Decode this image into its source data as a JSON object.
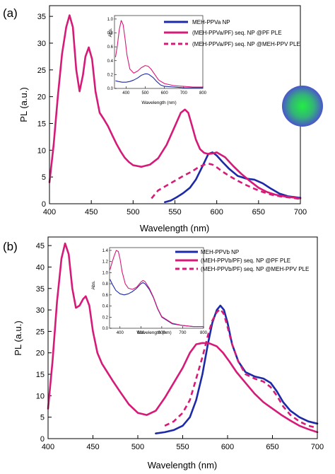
{
  "figure": {
    "colors": {
      "blue": "#1c2aa8",
      "magenta": "#d61a78",
      "axis": "#000000",
      "np_gradient_inner": "#22ee44",
      "np_gradient_outer": "#4a55cc"
    },
    "np_icon": "nanoparticle-glow-icon"
  },
  "chart_data": [
    {
      "type": "line",
      "panel_label": "(a)",
      "xlabel": "Wavelength (nm)",
      "ylabel": "PL (a.u.)",
      "xlim": [
        400,
        700
      ],
      "ylim": [
        0,
        37
      ],
      "xticks": [
        400,
        450,
        500,
        550,
        600,
        650,
        700
      ],
      "yticks": [
        0,
        5,
        10,
        15,
        20,
        25,
        30,
        35
      ],
      "xtick_labels": [
        "400",
        "450",
        "500",
        "550",
        "600",
        "650",
        "700"
      ],
      "ytick_labels": [
        "0",
        "5",
        "10",
        "15",
        "20",
        "25",
        "30",
        "35"
      ],
      "legend_position": "top-right",
      "series": [
        {
          "name": "MEH-PPVa NP",
          "color": "#1c2aa8",
          "style": "solid",
          "x": [
            538,
            545,
            552,
            560,
            568,
            575,
            583,
            590,
            595,
            600,
            607,
            615,
            625,
            635,
            645,
            655,
            665,
            675,
            685,
            695,
            700
          ],
          "y": [
            0.3,
            0.6,
            1.2,
            2.0,
            3.0,
            4.5,
            7.0,
            9.3,
            9.6,
            9.0,
            7.8,
            6.5,
            5.2,
            4.7,
            4.5,
            3.8,
            2.8,
            1.9,
            1.4,
            1.2,
            1.1
          ]
        },
        {
          "name": "(MEH-PPVa/PF) seq. NP @PF PLE",
          "color": "#d61a78",
          "style": "solid",
          "x": [
            400,
            405,
            410,
            415,
            420,
            424,
            428,
            432,
            436,
            440,
            443,
            447,
            451,
            455,
            460,
            465,
            470,
            475,
            480,
            485,
            490,
            495,
            500,
            510,
            520,
            530,
            540,
            550,
            557,
            562,
            566,
            570,
            575,
            580,
            585,
            590,
            595,
            600,
            610,
            620,
            630,
            640,
            650,
            660,
            670,
            680,
            690,
            700
          ],
          "y": [
            4.0,
            11.0,
            20.0,
            28.0,
            33.0,
            35.2,
            33.0,
            25.0,
            21.0,
            24.0,
            27.5,
            29.2,
            27.0,
            21.0,
            17.0,
            15.8,
            14.5,
            12.8,
            11.2,
            9.8,
            8.6,
            7.8,
            7.2,
            6.9,
            7.3,
            8.5,
            11.0,
            14.5,
            17.0,
            17.6,
            17.0,
            14.8,
            12.0,
            10.2,
            9.5,
            9.3,
            9.4,
            9.6,
            8.7,
            7.0,
            5.5,
            4.2,
            3.0,
            2.2,
            1.7,
            1.4,
            1.2,
            1.0
          ]
        },
        {
          "name": "(MEH-PPVa/PF) seq. NP @MEH-PPV PLE",
          "color": "#d61a78",
          "style": "dashed",
          "x": [
            522,
            530,
            540,
            550,
            560,
            570,
            578,
            585,
            590,
            595,
            600,
            607,
            615,
            625,
            635,
            645,
            655,
            665,
            675,
            685,
            695,
            700
          ],
          "y": [
            1.0,
            2.5,
            3.4,
            4.3,
            5.2,
            6.0,
            6.8,
            7.3,
            7.5,
            7.3,
            6.8,
            6.0,
            5.2,
            4.3,
            3.5,
            2.8,
            2.2,
            1.7,
            1.4,
            1.2,
            1.0,
            0.9
          ]
        }
      ],
      "inset": {
        "xlabel": "Wavelength (nm)",
        "ylabel": "Abs.",
        "xlim": [
          340,
          800
        ],
        "ylim": [
          0,
          1.05
        ],
        "xticks": [
          400,
          500,
          600,
          700,
          800
        ],
        "yticks": [
          0.0,
          0.2,
          0.4,
          0.6,
          0.8,
          1.0
        ],
        "xtick_labels": [
          "400",
          "500",
          "600",
          "700",
          "800"
        ],
        "ytick_labels": [
          "0.0",
          "0.2",
          "0.4",
          "0.6",
          "0.8",
          "1.0"
        ],
        "series": [
          {
            "color": "#1c2aa8",
            "x": [
              345,
              360,
              380,
              400,
              420,
              440,
              460,
              480,
              500,
              510,
              520,
              540,
              560,
              580,
              600,
              650,
              700,
              750,
              800
            ],
            "y": [
              0.11,
              0.1,
              0.09,
              0.09,
              0.1,
              0.12,
              0.15,
              0.19,
              0.21,
              0.21,
              0.2,
              0.16,
              0.1,
              0.05,
              0.03,
              0.02,
              0.01,
              0.01,
              0.01
            ]
          },
          {
            "color": "#d61a78",
            "x": [
              345,
              355,
              365,
              375,
              385,
              395,
              405,
              420,
              440,
              460,
              480,
              500,
              515,
              530,
              550,
              570,
              600,
              650,
              700,
              750,
              800
            ],
            "y": [
              0.45,
              0.62,
              0.85,
              0.98,
              0.92,
              0.72,
              0.48,
              0.28,
              0.22,
              0.25,
              0.3,
              0.33,
              0.32,
              0.28,
              0.2,
              0.12,
              0.07,
              0.04,
              0.03,
              0.02,
              0.02
            ]
          }
        ]
      }
    },
    {
      "type": "line",
      "panel_label": "(b)",
      "xlabel": "Wavelength (nm)",
      "ylabel": "PL (a.u.)",
      "xlim": [
        400,
        700
      ],
      "ylim": [
        0,
        47
      ],
      "xticks": [
        400,
        450,
        500,
        550,
        600,
        650,
        700
      ],
      "yticks": [
        0,
        5,
        10,
        15,
        20,
        25,
        30,
        35,
        40,
        45
      ],
      "xtick_labels": [
        "400",
        "450",
        "500",
        "550",
        "600",
        "650",
        "700"
      ],
      "ytick_labels": [
        "0",
        "5",
        "10",
        "15",
        "20",
        "25",
        "30",
        "35",
        "40",
        "45"
      ],
      "legend_position": "top-right",
      "series": [
        {
          "name": "MEH-PPVb NP",
          "color": "#1c2aa8",
          "style": "solid",
          "x": [
            520,
            530,
            540,
            550,
            558,
            565,
            572,
            578,
            583,
            588,
            592,
            596,
            600,
            605,
            612,
            620,
            630,
            640,
            648,
            655,
            662,
            670,
            680,
            690,
            700
          ],
          "y": [
            1.2,
            1.5,
            2.0,
            3.0,
            5.0,
            9.0,
            15.0,
            22.0,
            27.0,
            30.0,
            31.0,
            30.0,
            27.0,
            22.0,
            18.0,
            15.5,
            14.5,
            14.0,
            13.0,
            11.0,
            8.5,
            6.5,
            5.0,
            4.0,
            3.5
          ]
        },
        {
          "name": "(MEH-PPVb/PF) seq. NP @PF PLE",
          "color": "#d61a78",
          "style": "solid",
          "x": [
            400,
            405,
            410,
            415,
            419,
            423,
            427,
            431,
            435,
            439,
            442,
            446,
            450,
            455,
            460,
            466,
            472,
            480,
            490,
            500,
            510,
            520,
            530,
            540,
            550,
            558,
            565,
            572,
            580,
            588,
            595,
            602,
            610,
            620,
            630,
            640,
            650,
            660,
            670,
            680,
            690,
            700
          ],
          "y": [
            7.0,
            18.0,
            32.0,
            42.0,
            45.5,
            43.0,
            35.0,
            30.5,
            31.0,
            32.5,
            33.2,
            31.0,
            25.0,
            20.0,
            17.5,
            15.5,
            13.5,
            11.0,
            8.0,
            6.0,
            5.5,
            6.5,
            9.5,
            13.0,
            16.5,
            20.0,
            22.0,
            22.3,
            22.2,
            21.5,
            20.0,
            18.0,
            15.5,
            13.0,
            10.5,
            8.5,
            7.0,
            5.5,
            4.2,
            3.0,
            2.2,
            1.5
          ]
        },
        {
          "name": "(MEH-PPVb/PF) seq. NP @MEH-PPV PLE",
          "color": "#d61a78",
          "style": "dashed",
          "x": [
            530,
            540,
            550,
            558,
            565,
            572,
            578,
            583,
            588,
            592,
            596,
            600,
            605,
            612,
            620,
            630,
            640,
            648,
            655,
            662,
            670,
            680,
            690,
            700
          ],
          "y": [
            3.0,
            4.0,
            6.0,
            9.0,
            14.0,
            19.0,
            24.0,
            27.5,
            29.5,
            30.2,
            29.0,
            26.0,
            22.0,
            18.0,
            15.0,
            14.0,
            13.3,
            12.0,
            10.0,
            7.5,
            5.5,
            4.0,
            3.0,
            2.5
          ]
        }
      ],
      "inset": {
        "xlabel": "Wavelength (nm)",
        "ylabel": "Abs.",
        "xlim": [
          350,
          800
        ],
        "ylim": [
          0,
          1.45
        ],
        "xticks": [
          400,
          500,
          600,
          700,
          800
        ],
        "yticks": [
          0.0,
          0.2,
          0.4,
          0.6,
          0.8,
          1.0,
          1.2,
          1.4
        ],
        "xtick_labels": [
          "400",
          "500",
          "600",
          "700",
          "800"
        ],
        "ytick_labels": [
          "0.0",
          "0.2",
          "0.4",
          "0.6",
          "0.8",
          "1.0",
          "1.2",
          "1.4"
        ],
        "series": [
          {
            "color": "#1c2aa8",
            "x": [
              352,
              365,
              380,
              400,
              420,
              440,
              460,
              480,
              500,
              510,
              520,
              540,
              560,
              580,
              600,
              650,
              700,
              750,
              800
            ],
            "y": [
              0.88,
              0.78,
              0.68,
              0.62,
              0.6,
              0.62,
              0.66,
              0.72,
              0.8,
              0.82,
              0.8,
              0.7,
              0.55,
              0.35,
              0.2,
              0.08,
              0.05,
              0.03,
              0.03
            ]
          },
          {
            "color": "#d61a78",
            "x": [
              352,
              362,
              372,
              382,
              392,
              400,
              410,
              425,
              440,
              460,
              480,
              500,
              510,
              520,
              540,
              560,
              580,
              600,
              650,
              700,
              750,
              800
            ],
            "y": [
              1.05,
              1.18,
              1.3,
              1.4,
              1.38,
              1.25,
              1.02,
              0.8,
              0.72,
              0.7,
              0.74,
              0.83,
              0.86,
              0.84,
              0.72,
              0.56,
              0.36,
              0.21,
              0.09,
              0.05,
              0.03,
              0.03
            ]
          }
        ]
      }
    }
  ]
}
